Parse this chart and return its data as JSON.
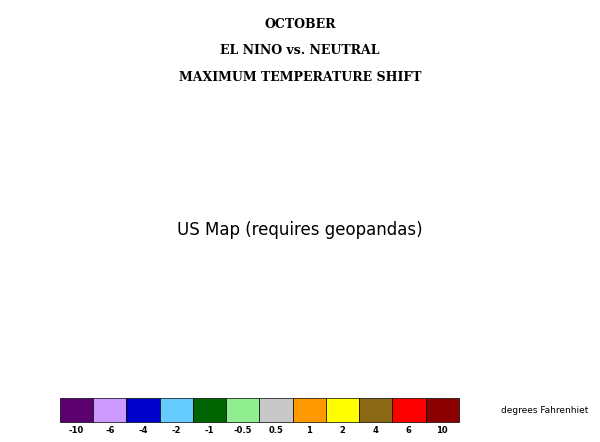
{
  "title_line1": "OCTOBER",
  "title_line2": "EL NINO vs. NEUTRAL",
  "title_line3": "MAXIMUM TEMPERATURE SHIFT",
  "colorbar_labels": [
    "-10",
    "-6",
    "-4",
    "-2",
    "-1",
    "-0.5",
    "0.5",
    "1",
    "2",
    "4",
    "6",
    "10"
  ],
  "colorbar_colors": [
    "#5C0070",
    "#CC99FF",
    "#0000CC",
    "#66CCFF",
    "#006400",
    "#90EE90",
    "#C8C8C8",
    "#FF9900",
    "#FFFF00",
    "#8B6914",
    "#FF0000",
    "#8B0000",
    "#FFB6C1"
  ],
  "units_label": "degrees Fahrenhiet",
  "background_color": "#FFFFFF",
  "fig_width": 6.0,
  "fig_height": 4.42,
  "dpi": 100,
  "state_colors": {
    "Washington": "#FFA500",
    "Oregon": "#C8C8C8",
    "California": "#90EE90",
    "Nevada": "#90EE90",
    "Idaho": "#90EE90",
    "Montana": "#90EE90",
    "Wyoming": "#90EE90",
    "Utah": "#90EE90",
    "Colorado": "#006400",
    "Arizona": "#006400",
    "New Mexico": "#006400",
    "North Dakota": "#006400",
    "South Dakota": "#006400",
    "Nebraska": "#006400",
    "Kansas": "#006400",
    "Oklahoma": "#006400",
    "Texas": "#006400",
    "Minnesota": "#006400",
    "Iowa": "#006400",
    "Missouri": "#006400",
    "Arkansas": "#006400",
    "Louisiana": "#006400",
    "Wisconsin": "#006400",
    "Illinois": "#006400",
    "Michigan": "#006400",
    "Indiana": "#006400",
    "Ohio": "#006400",
    "Kentucky": "#006400",
    "Tennessee": "#006400",
    "Mississippi": "#90EE90",
    "Alabama": "#90EE90",
    "Georgia": "#90EE90",
    "Florida": "#C8C8C8",
    "South Carolina": "#90EE90",
    "North Carolina": "#006400",
    "Virginia": "#006400",
    "West Virginia": "#006400",
    "Maryland": "#006400",
    "Delaware": "#006400",
    "New Jersey": "#006400",
    "Pennsylvania": "#006400",
    "New York": "#006400",
    "Connecticut": "#006400",
    "Rhode Island": "#006400",
    "Massachusetts": "#006400",
    "Vermont": "#006400",
    "New Hampshire": "#006400",
    "Maine": "#006400"
  }
}
